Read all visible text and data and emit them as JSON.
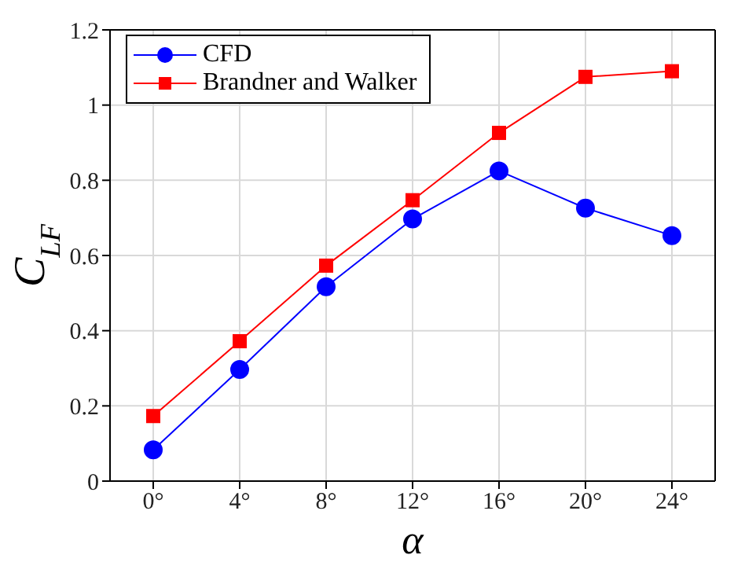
{
  "chart_data": {
    "type": "line",
    "xlabel": "α",
    "ylabel": "C$_{LF}$",
    "x": [
      0,
      4,
      8,
      12,
      16,
      20,
      24
    ],
    "series": [
      {
        "name": "CFD",
        "color": "#0000ff",
        "marker": "circle",
        "values": [
          0.083,
          0.297,
          0.517,
          0.697,
          0.825,
          0.726,
          0.653
        ]
      },
      {
        "name": "Brandner and Walker",
        "color": "#ff0000",
        "marker": "square",
        "values": [
          0.173,
          0.372,
          0.573,
          0.747,
          0.926,
          1.075,
          1.09
        ]
      }
    ],
    "xlim": [
      -2,
      26
    ],
    "xticks": [
      {
        "value": 0,
        "label": "0°"
      },
      {
        "value": 4,
        "label": "4°"
      },
      {
        "value": 8,
        "label": "8°"
      },
      {
        "value": 12,
        "label": "12°"
      },
      {
        "value": 16,
        "label": "16°"
      },
      {
        "value": 20,
        "label": "20°"
      },
      {
        "value": 24,
        "label": "24°"
      }
    ],
    "ylim": [
      0,
      1.2
    ],
    "yticks": [
      0,
      0.2,
      0.4,
      0.6,
      0.8,
      1,
      1.2
    ],
    "grid": true,
    "legend": "top left"
  }
}
